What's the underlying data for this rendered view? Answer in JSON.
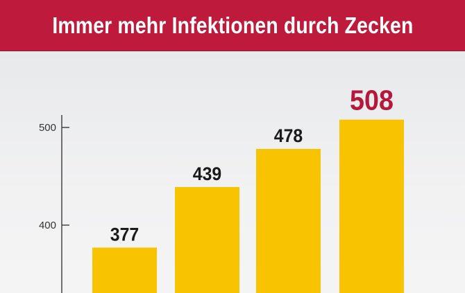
{
  "title": "Immer mehr Infektionen durch Zecken",
  "colors": {
    "title_background": "#be1a3c",
    "title_text": "#ffffff",
    "bar": "#f8c300",
    "value_label": "#1a1a1a",
    "highlight_label": "#b5183a",
    "axis": "#444444"
  },
  "chart_data": {
    "type": "bar",
    "title": "Immer mehr Infektionen durch Zecken",
    "values": [
      377,
      439,
      478,
      508
    ],
    "data_labels": [
      "377",
      "439",
      "478",
      "508"
    ],
    "highlighted_index": 3,
    "yticks": [
      400,
      500
    ],
    "ytick_labels": [
      "400",
      "500"
    ],
    "xlabel": "",
    "ylabel": "",
    "grid": false
  }
}
